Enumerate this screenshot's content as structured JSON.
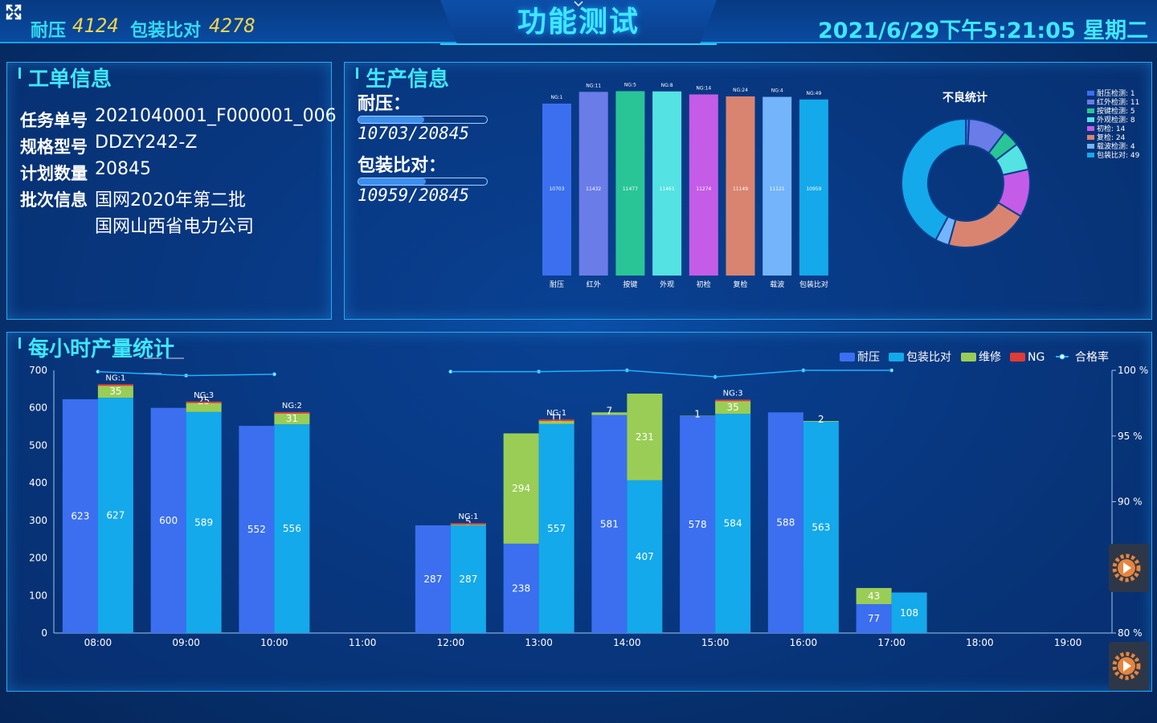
{
  "header": {
    "title": "功能测试",
    "naiya_label": "耐压",
    "naiya_value": "4124",
    "baozhuang_label": "包装比对",
    "baozhuang_value": "4278",
    "datetime": "2021/6/29下午5:21:05 星期二"
  },
  "work_order": {
    "title": "工单信息",
    "rows": [
      {
        "label": "任务单号",
        "value": "2021040001_F000001_006"
      },
      {
        "label": "规格型号",
        "value": "DDZY242-Z"
      },
      {
        "label": "计划数量",
        "value": "20845"
      },
      {
        "label": "批次信息",
        "value": "国网2020年第二批"
      }
    ],
    "batch_line2": "国网山西省电力公司"
  },
  "production": {
    "title": "生产信息",
    "naiya_label": "耐压：",
    "naiya_progress": 0.5134,
    "naiya_text": "10703/20845",
    "baozhuang_label": "包装比对：",
    "baozhuang_progress": 0.5257,
    "baozhuang_text": "10959/20845",
    "bar_chart": {
      "categories": [
        "耐压",
        "红外",
        "按键",
        "外观",
        "初检",
        "复检",
        "载波",
        "包装比对"
      ],
      "ng_labels": [
        "NG:1",
        "NG:11",
        "NG:5",
        "NG:8",
        "NG:14",
        "NG:24",
        "NG:4",
        "NG:49"
      ],
      "values": [
        10703,
        11432,
        11477,
        11461,
        11274,
        11149,
        11121,
        10959
      ],
      "colors": [
        "#3b6ff0",
        "#6a7ce8",
        "#29c597",
        "#54e2e2",
        "#c45ce8",
        "#d98470",
        "#74b4fb",
        "#14a9ea"
      ]
    },
    "pie": {
      "title": "不良统计",
      "legend": [
        "耐压检测: 1",
        "红外检测: 11",
        "按键检测: 5",
        "外观检测: 8",
        "初检: 14",
        "复检: 24",
        "载波检测: 4",
        "包装比对: 49"
      ],
      "values": [
        1,
        11,
        5,
        8,
        14,
        24,
        4,
        49
      ],
      "colors": [
        "#3b6ff0",
        "#6a7ce8",
        "#29c597",
        "#54e2e2",
        "#c45ce8",
        "#d98470",
        "#74b4fb",
        "#14a9ea"
      ]
    }
  },
  "hourly": {
    "title": "每小时产量统计",
    "legend": [
      "耐压",
      "包装比对",
      "维修",
      "NG",
      "合格率"
    ],
    "legend_colors": [
      "#3b6ff0",
      "#14a9ea",
      "#9acd56",
      "#e03b34",
      "#1fb2ff"
    ]
  },
  "chart_data": {
    "type": "bar",
    "categories": [
      "08:00",
      "09:00",
      "10:00",
      "11:00",
      "12:00",
      "13:00",
      "14:00",
      "15:00",
      "16:00",
      "17:00",
      "18:00",
      "19:00"
    ],
    "series": [
      {
        "name": "耐压",
        "values": [
          623,
          600,
          552,
          0,
          287,
          238,
          581,
          578,
          588,
          77,
          0,
          0
        ],
        "repair": [
          0,
          0,
          0,
          0,
          0,
          294,
          7,
          1,
          0,
          43,
          0,
          0
        ],
        "ng": [
          0,
          0,
          0,
          0,
          0,
          0,
          0,
          0,
          0,
          0,
          0,
          0
        ]
      },
      {
        "name": "包装比对",
        "values": [
          627,
          589,
          556,
          0,
          287,
          557,
          407,
          584,
          563,
          108,
          0,
          0
        ],
        "repair": [
          35,
          25,
          31,
          0,
          5,
          11,
          231,
          35,
          2,
          0,
          0,
          0
        ],
        "ng": [
          1,
          3,
          2,
          0,
          1,
          1,
          0,
          3,
          0,
          0,
          0,
          0
        ]
      },
      {
        "name": "合格率",
        "values": [
          99.9,
          99.6,
          99.7,
          null,
          99.9,
          99.9,
          100,
          99.5,
          100,
          100,
          null,
          null
        ]
      }
    ],
    "ylim": [
      0,
      700
    ],
    "y2lim": [
      80,
      100
    ],
    "yticks": [
      "0",
      "100",
      "200",
      "300",
      "400",
      "500",
      "600",
      "700"
    ],
    "y2ticks": [
      "80 %",
      "90 %",
      "95 %",
      "100 %"
    ]
  }
}
